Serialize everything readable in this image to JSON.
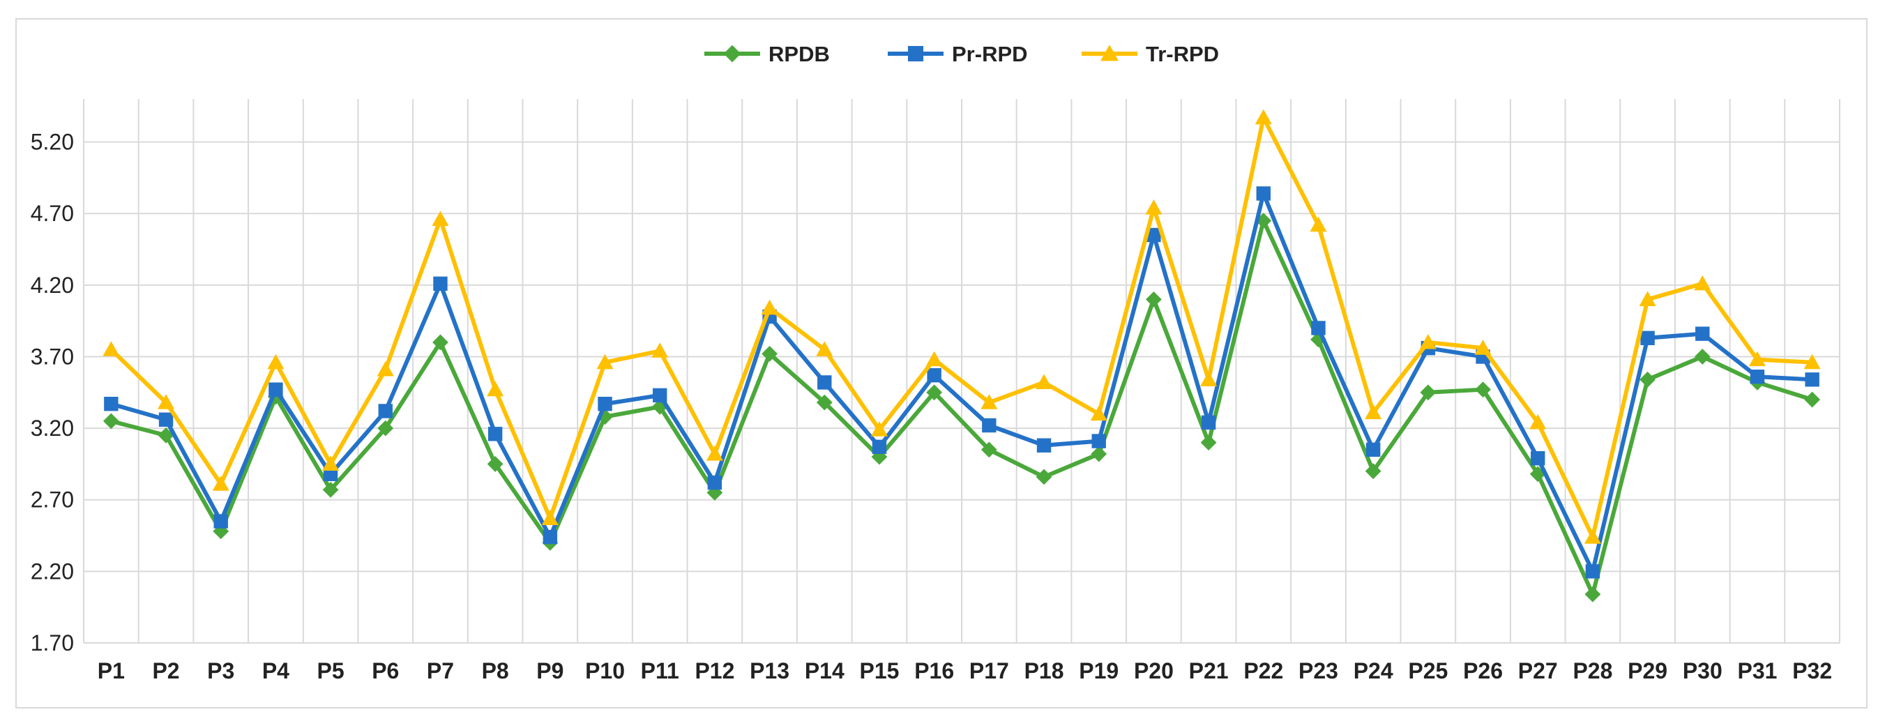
{
  "chart_data": {
    "type": "line",
    "title": "",
    "xlabel": "",
    "ylabel": "",
    "ylim": [
      1.7,
      5.5
    ],
    "yticks": [
      "1.70",
      "2.20",
      "2.70",
      "3.20",
      "3.70",
      "4.20",
      "4.70",
      "5.20"
    ],
    "ytick_values": [
      1.7,
      2.2,
      2.7,
      3.2,
      3.7,
      4.2,
      4.7,
      5.2
    ],
    "grid": true,
    "legend_position": "top-center",
    "categories": [
      "P1",
      "P2",
      "P3",
      "P4",
      "P5",
      "P6",
      "P7",
      "P8",
      "P9",
      "P10",
      "P11",
      "P12",
      "P13",
      "P14",
      "P15",
      "P16",
      "P17",
      "P18",
      "P19",
      "P20",
      "P21",
      "P22",
      "P23",
      "P24",
      "P25",
      "P26",
      "P27",
      "P28",
      "P29",
      "P30",
      "P31",
      "P32"
    ],
    "series": [
      {
        "name": "RPDB",
        "color": "#4aa83a",
        "marker": "diamond",
        "values": [
          3.25,
          3.15,
          2.48,
          3.42,
          2.77,
          3.2,
          3.8,
          2.95,
          2.4,
          3.28,
          3.35,
          2.75,
          3.72,
          3.38,
          3.0,
          3.45,
          3.05,
          2.86,
          3.02,
          4.1,
          3.1,
          4.65,
          3.82,
          2.9,
          3.45,
          3.47,
          2.88,
          2.04,
          3.54,
          3.7,
          3.52,
          3.4
        ]
      },
      {
        "name": "Pr-RPD",
        "color": "#2472c8",
        "marker": "square",
        "values": [
          3.37,
          3.26,
          2.55,
          3.47,
          2.88,
          3.32,
          4.21,
          3.16,
          2.44,
          3.37,
          3.43,
          2.82,
          3.98,
          3.52,
          3.07,
          3.57,
          3.22,
          3.08,
          3.11,
          4.55,
          3.24,
          4.84,
          3.9,
          3.05,
          3.76,
          3.7,
          2.99,
          2.2,
          3.83,
          3.86,
          3.56,
          3.54
        ]
      },
      {
        "name": "Tr-RPD",
        "color": "#ffc000",
        "marker": "triangle",
        "values": [
          3.75,
          3.38,
          2.81,
          3.66,
          2.95,
          3.61,
          4.66,
          3.47,
          2.57,
          3.66,
          3.74,
          3.02,
          4.04,
          3.75,
          3.19,
          3.68,
          3.38,
          3.52,
          3.3,
          4.74,
          3.54,
          5.37,
          4.62,
          3.31,
          3.8,
          3.76,
          3.24,
          2.44,
          4.1,
          4.21,
          3.68,
          3.66
        ]
      }
    ]
  }
}
